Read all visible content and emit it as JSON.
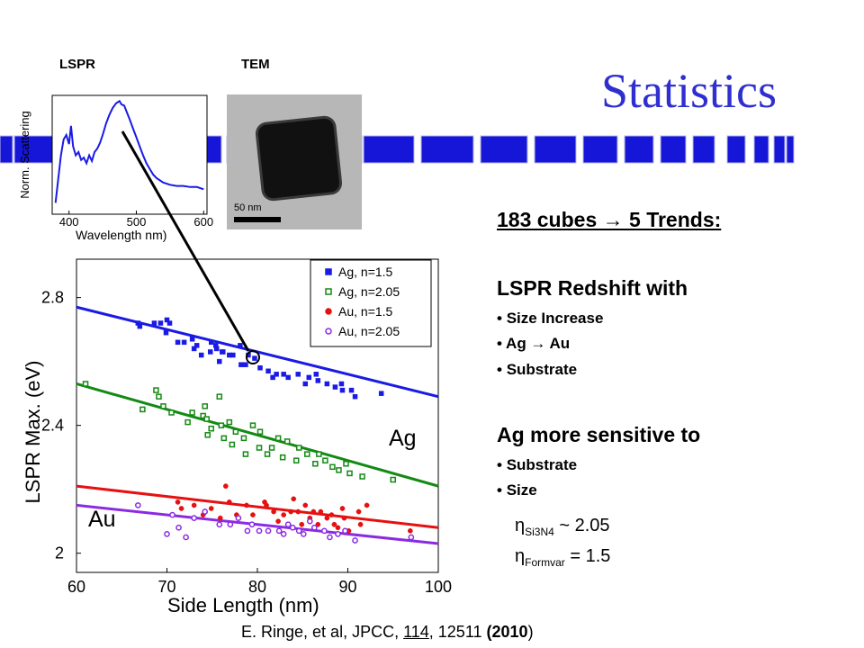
{
  "title": "Statistics",
  "panels": {
    "lspr_label": "LSPR",
    "tem_label": "TEM"
  },
  "tem": {
    "scale_label": "50 nm"
  },
  "spectrum": {
    "ylabel": "Norm. Scattering",
    "xlabel": "Wavelength nm)",
    "x_ticks": [
      "400",
      "500",
      "600"
    ]
  },
  "summary": {
    "heading": "183 cubes → 5 Trends:",
    "redshift_heading": "LSPR Redshift with",
    "redshift_items": [
      "Size Increase",
      "Ag → Au",
      "Substrate"
    ],
    "sensitive_heading": "Ag more sensitive to",
    "sensitive_items": [
      "Substrate",
      "Size"
    ],
    "eta_si3n4": {
      "symbol": "η",
      "sub": "Si3N4",
      "value": " ~ 2.05"
    },
    "eta_formvar": {
      "symbol": "η",
      "sub": "Formvar",
      "value": " = 1.5"
    }
  },
  "citation": {
    "pre": "E. Ringe, et al, JPCC, ",
    "volume": "114",
    "mid": ", 12511 ",
    "year": "(2010",
    "close": ")"
  },
  "chart_data": [
    {
      "type": "line",
      "xlabel": "Wavelength nm)",
      "ylabel": "Norm. Scattering",
      "xlim": [
        375,
        605
      ],
      "ylim": [
        0,
        1.05
      ],
      "x_ticks": [
        400,
        500,
        600
      ],
      "series": [
        {
          "color": "#1a1ae6",
          "x": [
            380,
            388,
            392,
            396,
            400,
            403,
            406,
            410,
            414,
            418,
            422,
            426,
            430,
            434,
            438,
            442,
            446,
            450,
            455,
            460,
            465,
            470,
            475,
            478,
            482,
            486,
            490,
            495,
            500,
            505,
            510,
            515,
            520,
            525,
            530,
            540,
            550,
            560,
            570,
            580,
            590,
            600
          ],
          "y": [
            0.1,
            0.52,
            0.66,
            0.7,
            0.62,
            0.78,
            0.6,
            0.52,
            0.55,
            0.48,
            0.5,
            0.45,
            0.52,
            0.47,
            0.55,
            0.58,
            0.63,
            0.7,
            0.8,
            0.88,
            0.94,
            0.98,
            1.0,
            0.97,
            0.96,
            0.9,
            0.84,
            0.76,
            0.68,
            0.6,
            0.52,
            0.45,
            0.4,
            0.35,
            0.32,
            0.28,
            0.26,
            0.25,
            0.25,
            0.24,
            0.24,
            0.22
          ]
        }
      ]
    },
    {
      "type": "scatter",
      "xlabel": "Side Length (nm)",
      "ylabel": "LSPR Max. (eV)",
      "xlim": [
        60,
        100
      ],
      "ylim": [
        1.94,
        2.92
      ],
      "x_ticks": [
        60,
        70,
        80,
        90,
        100
      ],
      "y_ticks": [
        2,
        2.4,
        2.8
      ],
      "legend_position": "top-right",
      "annotations": [
        "Ag",
        "Au"
      ],
      "series": [
        {
          "name": "Ag, n=1.5",
          "color": "#1a1ae6",
          "marker": "square-filled",
          "fit": [
            [
              60,
              2.77
            ],
            [
              100,
              2.49
            ]
          ],
          "x": [
            66.8,
            67.0,
            68.6,
            69.3,
            69.9,
            70.0,
            70.3,
            71.2,
            71.9,
            72.8,
            73.0,
            73.3,
            73.8,
            74.8,
            74.9,
            75.4,
            75.5,
            75.8,
            76.1,
            76.2,
            76.9,
            77.3,
            78.1,
            78.2,
            78.7,
            79.0,
            79.7,
            80.3,
            81.2,
            81.7,
            82.1,
            82.9,
            83.4,
            84.5,
            85.3,
            85.7,
            86.5,
            86.7,
            87.7,
            88.6,
            89.3,
            89.4,
            90.4,
            90.8,
            93.7
          ],
          "y": [
            2.72,
            2.71,
            2.72,
            2.72,
            2.69,
            2.73,
            2.72,
            2.66,
            2.66,
            2.67,
            2.64,
            2.65,
            2.62,
            2.63,
            2.66,
            2.65,
            2.64,
            2.6,
            2.63,
            2.63,
            2.62,
            2.62,
            2.65,
            2.59,
            2.59,
            2.62,
            2.61,
            2.58,
            2.57,
            2.55,
            2.56,
            2.56,
            2.55,
            2.56,
            2.53,
            2.55,
            2.56,
            2.54,
            2.53,
            2.52,
            2.53,
            2.51,
            2.51,
            2.49,
            2.5
          ]
        },
        {
          "name": "Ag, n=2.05",
          "color": "#138a13",
          "marker": "square-open",
          "fit": [
            [
              60,
              2.53
            ],
            [
              100,
              2.21
            ]
          ],
          "x": [
            61.0,
            67.3,
            68.8,
            69.1,
            69.6,
            70.5,
            72.3,
            72.8,
            74.0,
            74.2,
            74.4,
            74.5,
            74.9,
            75.8,
            76.0,
            76.3,
            76.9,
            77.2,
            77.6,
            78.5,
            78.7,
            79.5,
            80.2,
            80.3,
            81.1,
            81.6,
            82.3,
            82.8,
            83.3,
            84.3,
            84.6,
            85.5,
            86.4,
            86.8,
            87.5,
            88.3,
            89.0,
            89.8,
            90.2,
            91.6,
            95.0
          ],
          "y": [
            2.53,
            2.45,
            2.51,
            2.49,
            2.46,
            2.44,
            2.41,
            2.44,
            2.43,
            2.46,
            2.42,
            2.37,
            2.39,
            2.49,
            2.4,
            2.36,
            2.41,
            2.34,
            2.38,
            2.36,
            2.31,
            2.4,
            2.33,
            2.38,
            2.31,
            2.33,
            2.36,
            2.3,
            2.35,
            2.29,
            2.33,
            2.31,
            2.28,
            2.31,
            2.29,
            2.27,
            2.26,
            2.28,
            2.25,
            2.24,
            2.23
          ]
        },
        {
          "name": "Au, n=1.5",
          "color": "#e61010",
          "marker": "circle-filled",
          "fit": [
            [
              60,
              2.21
            ],
            [
              100,
              2.08
            ]
          ],
          "x": [
            71.2,
            71.6,
            73.0,
            74.0,
            74.9,
            75.9,
            76.5,
            76.9,
            77.7,
            78.8,
            79.5,
            80.8,
            81.0,
            81.8,
            82.3,
            82.9,
            83.7,
            84.0,
            84.5,
            84.9,
            85.3,
            85.8,
            86.2,
            86.7,
            87.0,
            87.7,
            88.2,
            88.5,
            88.9,
            89.4,
            89.6,
            90.1,
            91.2,
            91.4,
            92.1,
            96.9
          ],
          "y": [
            2.16,
            2.14,
            2.15,
            2.12,
            2.14,
            2.11,
            2.21,
            2.16,
            2.12,
            2.15,
            2.12,
            2.16,
            2.15,
            2.13,
            2.1,
            2.12,
            2.13,
            2.17,
            2.13,
            2.09,
            2.15,
            2.11,
            2.13,
            2.09,
            2.13,
            2.11,
            2.12,
            2.09,
            2.08,
            2.14,
            2.11,
            2.07,
            2.13,
            2.09,
            2.15,
            2.07
          ]
        },
        {
          "name": "Au, n=2.05",
          "color": "#8a2be2",
          "marker": "circle-open",
          "fit": [
            [
              60,
              2.15
            ],
            [
              100,
              2.03
            ]
          ],
          "x": [
            66.8,
            70.0,
            70.6,
            71.3,
            72.1,
            73.0,
            74.2,
            75.8,
            77.0,
            77.9,
            78.9,
            79.4,
            80.2,
            81.2,
            82.4,
            82.9,
            83.4,
            83.9,
            84.6,
            85.1,
            85.8,
            86.3,
            87.4,
            88.0,
            88.9,
            89.7,
            90.8,
            97.0
          ],
          "y": [
            2.15,
            2.06,
            2.12,
            2.08,
            2.05,
            2.11,
            2.13,
            2.09,
            2.09,
            2.11,
            2.07,
            2.09,
            2.07,
            2.07,
            2.07,
            2.06,
            2.09,
            2.08,
            2.07,
            2.06,
            2.1,
            2.08,
            2.07,
            2.05,
            2.06,
            2.07,
            2.04,
            2.05
          ]
        }
      ]
    }
  ]
}
